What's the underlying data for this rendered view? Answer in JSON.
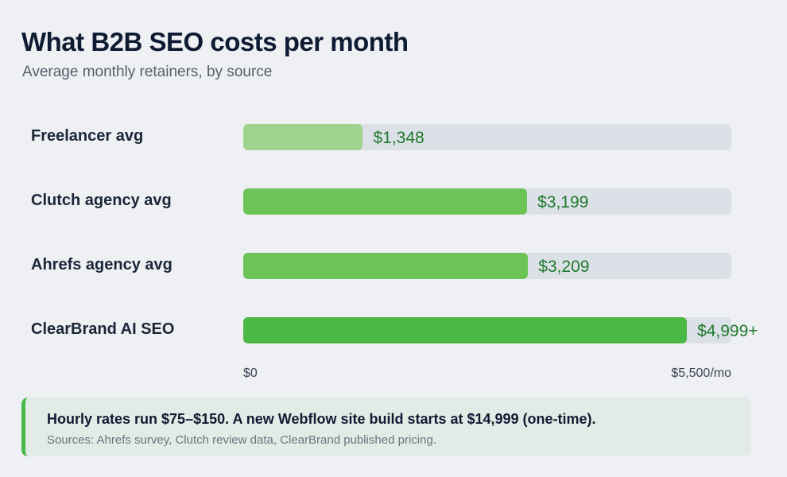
{
  "chart_data": {
    "type": "bar",
    "orientation": "horizontal",
    "title": "What B2B SEO costs per month",
    "subtitle": "Average monthly retainers, by source",
    "categories": [
      "Freelancer avg",
      "Clutch agency avg",
      "Ahrefs agency avg",
      "ClearBrand AI SEO"
    ],
    "values": [
      1348,
      3199,
      3209,
      4999
    ],
    "value_labels": [
      "$1,348",
      "$3,199",
      "$3,209",
      "$4,999+"
    ],
    "colors": [
      "#9fd48e",
      "#6cc457",
      "#6cc457",
      "#4cb946"
    ],
    "xlim": [
      0,
      5500
    ],
    "x_tick_labels": [
      "$0",
      "$5,500/mo"
    ],
    "grid": false
  },
  "note": {
    "main": "Hourly rates run $75–$150. A new Webflow site build starts at $14,999 (one-time).",
    "sources": "Sources: Ahrefs survey, Clutch review data, ClearBrand published pricing."
  }
}
